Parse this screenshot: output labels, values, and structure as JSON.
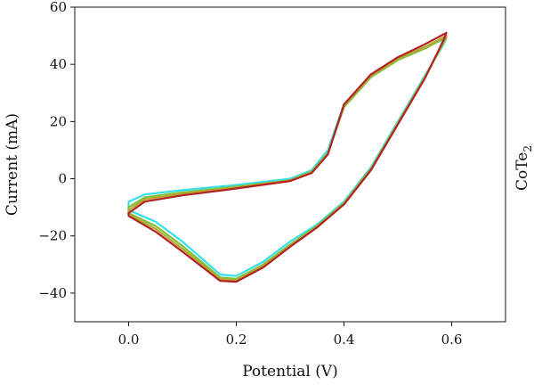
{
  "chart_data": {
    "type": "line",
    "title": "",
    "xlabel": "Potential (V)",
    "ylabel": "Current (mA)",
    "side_label": {
      "main": "CoTe",
      "sub": "2"
    },
    "xlim": [
      -0.1,
      0.7
    ],
    "ylim": [
      -50,
      60
    ],
    "x_ticks": [
      0.0,
      0.2,
      0.4,
      0.6
    ],
    "x_tick_labels": [
      "0.0",
      "0.2",
      "0.4",
      "0.6"
    ],
    "y_ticks": [
      -40,
      -20,
      0,
      20,
      40,
      60
    ],
    "y_tick_labels": [
      "−40",
      "−20",
      "0",
      "20",
      "40",
      "60"
    ],
    "grid": false,
    "legend": "none",
    "series": [
      {
        "color": "#33e0e8",
        "points": [
          [
            0.0,
            -8
          ],
          [
            0.03,
            -5.5
          ],
          [
            0.1,
            -4
          ],
          [
            0.2,
            -2.2
          ],
          [
            0.3,
            0
          ],
          [
            0.34,
            3
          ],
          [
            0.37,
            10
          ],
          [
            0.4,
            26
          ],
          [
            0.45,
            36
          ],
          [
            0.5,
            42
          ],
          [
            0.55,
            46
          ],
          [
            0.59,
            49
          ],
          [
            0.585,
            47
          ],
          [
            0.55,
            36
          ],
          [
            0.5,
            20
          ],
          [
            0.45,
            4
          ],
          [
            0.4,
            -8
          ],
          [
            0.35,
            -16
          ],
          [
            0.3,
            -22
          ],
          [
            0.25,
            -29
          ],
          [
            0.2,
            -34
          ],
          [
            0.17,
            -33.5
          ],
          [
            0.1,
            -22
          ],
          [
            0.05,
            -15
          ],
          [
            0.0,
            -11
          ]
        ]
      },
      {
        "color": "#7fbf3a",
        "points": [
          [
            0.0,
            -10
          ],
          [
            0.03,
            -6.5
          ],
          [
            0.1,
            -4.8
          ],
          [
            0.2,
            -2.8
          ],
          [
            0.3,
            -0.5
          ],
          [
            0.34,
            2.5
          ],
          [
            0.37,
            9
          ],
          [
            0.4,
            25
          ],
          [
            0.45,
            35.5
          ],
          [
            0.5,
            41.5
          ],
          [
            0.55,
            45.5
          ],
          [
            0.59,
            49.5
          ],
          [
            0.585,
            47.5
          ],
          [
            0.55,
            35.5
          ],
          [
            0.5,
            19.5
          ],
          [
            0.45,
            3.5
          ],
          [
            0.4,
            -8.5
          ],
          [
            0.35,
            -16.5
          ],
          [
            0.3,
            -23
          ],
          [
            0.25,
            -30
          ],
          [
            0.2,
            -35
          ],
          [
            0.17,
            -34.5
          ],
          [
            0.1,
            -23.5
          ],
          [
            0.05,
            -16.5
          ],
          [
            0.0,
            -12
          ]
        ]
      },
      {
        "color": "#b8a832",
        "points": [
          [
            0.0,
            -11
          ],
          [
            0.03,
            -7.2
          ],
          [
            0.1,
            -5.2
          ],
          [
            0.2,
            -3
          ],
          [
            0.3,
            -0.6
          ],
          [
            0.34,
            2.3
          ],
          [
            0.37,
            8.8
          ],
          [
            0.4,
            25.5
          ],
          [
            0.45,
            36
          ],
          [
            0.5,
            42
          ],
          [
            0.55,
            46
          ],
          [
            0.59,
            50
          ],
          [
            0.585,
            48
          ],
          [
            0.55,
            35.2
          ],
          [
            0.5,
            19.2
          ],
          [
            0.45,
            3.2
          ],
          [
            0.4,
            -8.8
          ],
          [
            0.35,
            -16.8
          ],
          [
            0.3,
            -23.3
          ],
          [
            0.25,
            -30.5
          ],
          [
            0.2,
            -35.5
          ],
          [
            0.17,
            -35
          ],
          [
            0.1,
            -24.5
          ],
          [
            0.05,
            -17.5
          ],
          [
            0.0,
            -12.5
          ]
        ]
      },
      {
        "color": "#b22222",
        "points": [
          [
            0.0,
            -12
          ],
          [
            0.03,
            -8
          ],
          [
            0.1,
            -5.8
          ],
          [
            0.2,
            -3.4
          ],
          [
            0.3,
            -0.8
          ],
          [
            0.34,
            2
          ],
          [
            0.37,
            8.5
          ],
          [
            0.4,
            26
          ],
          [
            0.45,
            36.5
          ],
          [
            0.5,
            42.5
          ],
          [
            0.55,
            47
          ],
          [
            0.59,
            51
          ],
          [
            0.585,
            48.5
          ],
          [
            0.55,
            35
          ],
          [
            0.5,
            19
          ],
          [
            0.45,
            3
          ],
          [
            0.4,
            -9
          ],
          [
            0.35,
            -17
          ],
          [
            0.3,
            -23.8
          ],
          [
            0.25,
            -31
          ],
          [
            0.2,
            -36
          ],
          [
            0.17,
            -35.7
          ],
          [
            0.1,
            -25.5
          ],
          [
            0.05,
            -18.5
          ],
          [
            0.0,
            -13
          ]
        ]
      }
    ]
  }
}
